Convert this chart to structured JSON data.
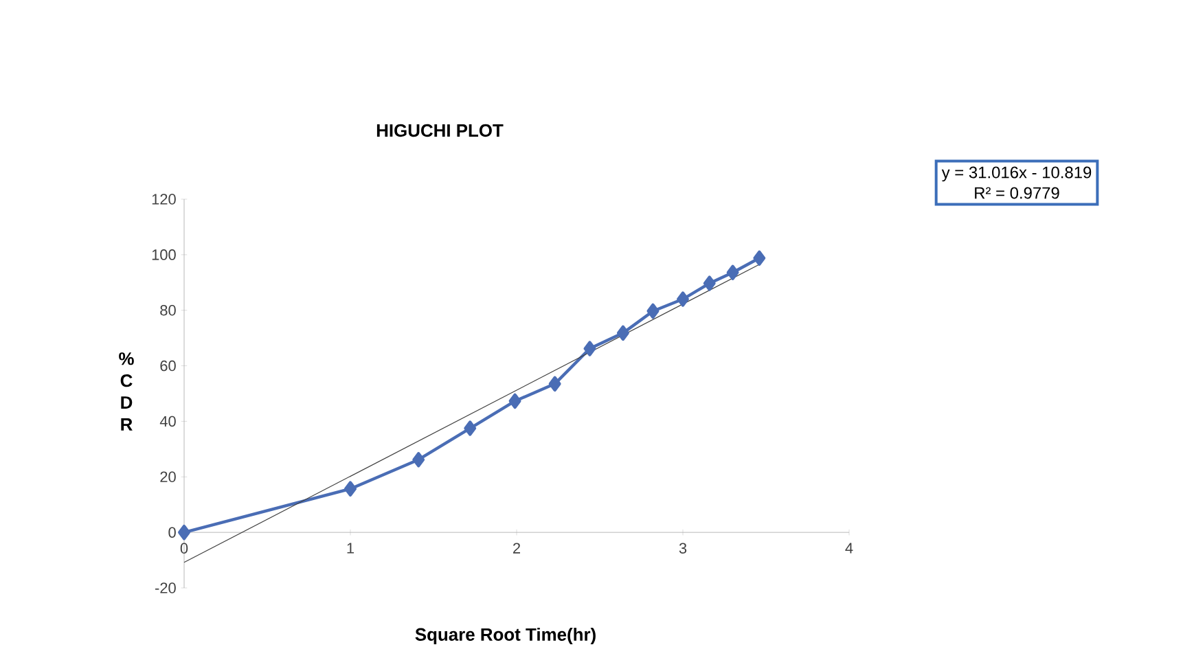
{
  "chart_data": {
    "type": "line",
    "title": "HIGUCHI PLOT",
    "xlabel": "Square Root Time(hr)",
    "ylabel": "% C D R",
    "annotations": [
      "y = 31.016x - 10.819",
      "R² = 0.9779"
    ],
    "xlim": [
      0,
      4
    ],
    "xticks": [
      0,
      1,
      2,
      3,
      4
    ],
    "ylim": [
      -20,
      120
    ],
    "yticks": [
      -20,
      0,
      20,
      40,
      60,
      80,
      100,
      120
    ],
    "marker": "diamond",
    "line_style": "solid",
    "series": [
      {
        "color": "#4a6db5",
        "x": [
          0,
          1,
          1.41,
          1.72,
          1.99,
          2.23,
          2.44,
          2.64,
          2.82,
          3.0,
          3.16,
          3.3,
          3.46
        ],
        "values": [
          0,
          15.7,
          26.2,
          37.5,
          47.3,
          53.5,
          66.2,
          71.8,
          79.7,
          84,
          89.7,
          93.6,
          98.8
        ]
      },
      {
        "type": "line",
        "marker": "none",
        "color": "#404040",
        "x": [
          0,
          3.46
        ],
        "values": [
          -10.8,
          96.5
        ]
      }
    ]
  }
}
